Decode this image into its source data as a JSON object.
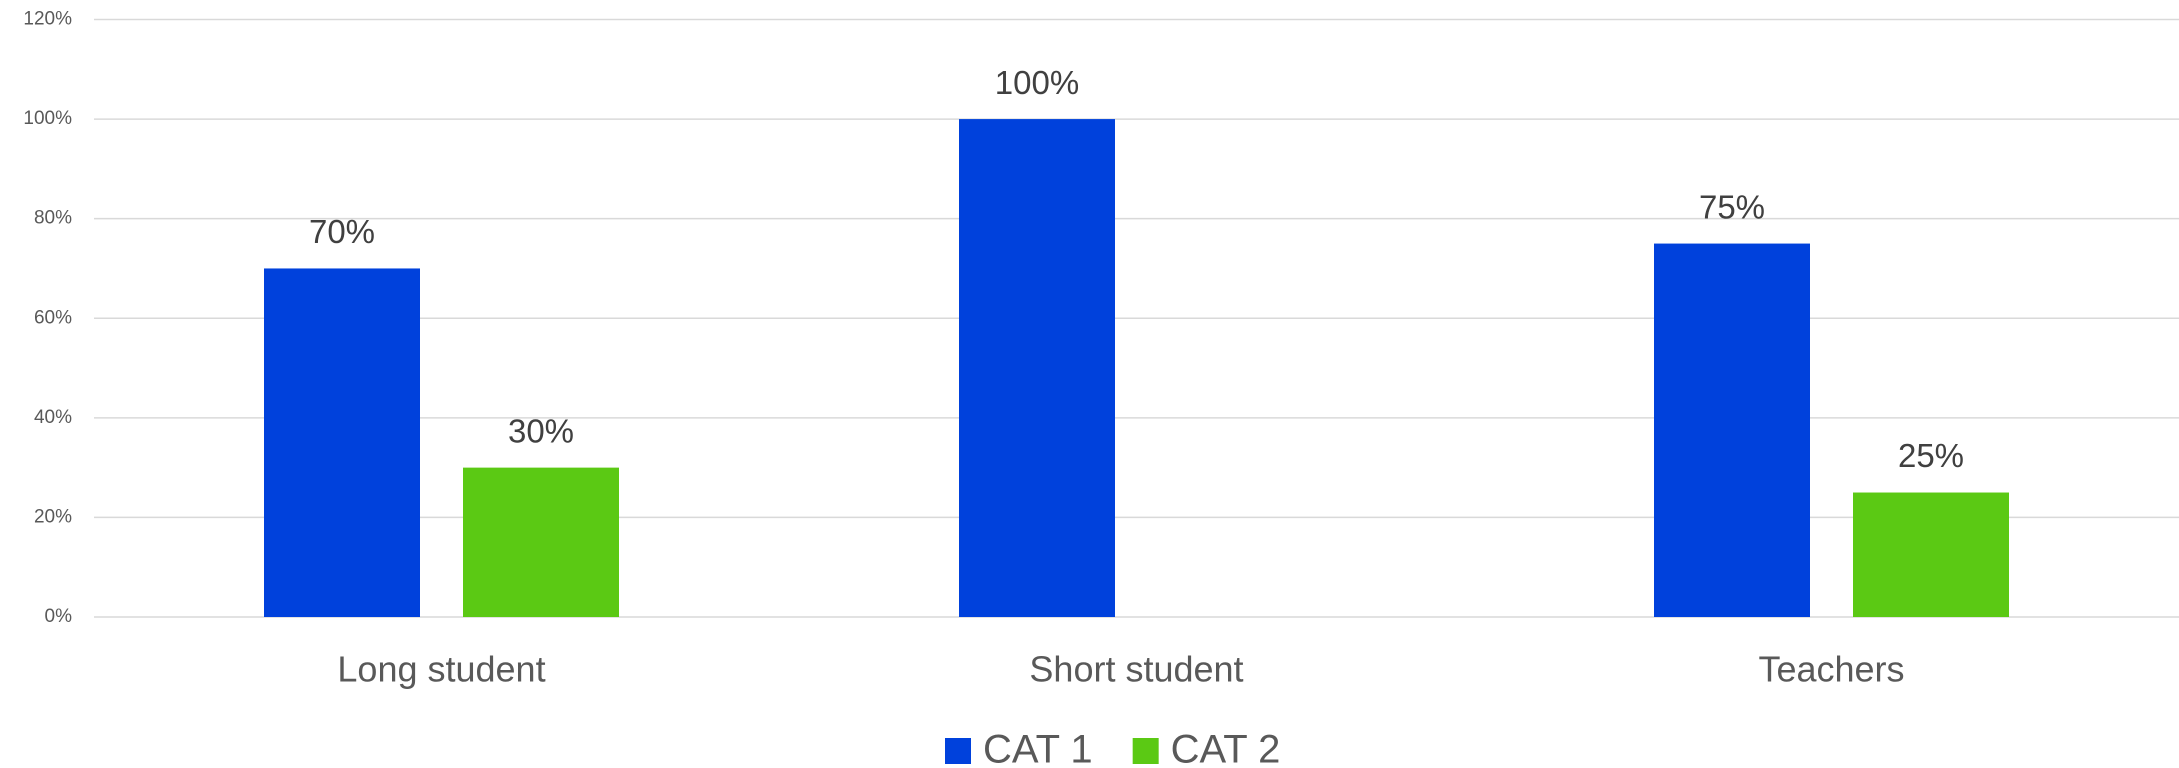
{
  "chart_data": {
    "type": "bar",
    "categories": [
      "Long student",
      "Short student",
      "Teachers"
    ],
    "series": [
      {
        "name": "CAT 1",
        "color": "#0041dc",
        "values": [
          70,
          100,
          75
        ],
        "value_labels": [
          "70%",
          "100%",
          "75%"
        ]
      },
      {
        "name": "CAT 2",
        "color": "#5bc914",
        "values": [
          30,
          null,
          25
        ],
        "value_labels": [
          "30%",
          null,
          "25%"
        ]
      }
    ],
    "ylim": [
      0,
      120
    ],
    "yticks": [
      {
        "value": 0,
        "label": "0%"
      },
      {
        "value": 20,
        "label": "20%"
      },
      {
        "value": 40,
        "label": "40%"
      },
      {
        "value": 60,
        "label": "60%"
      },
      {
        "value": 80,
        "label": "80%"
      },
      {
        "value": 100,
        "label": "100%"
      },
      {
        "value": 120,
        "label": "120%"
      }
    ],
    "grid": true,
    "legend": "bottom"
  }
}
